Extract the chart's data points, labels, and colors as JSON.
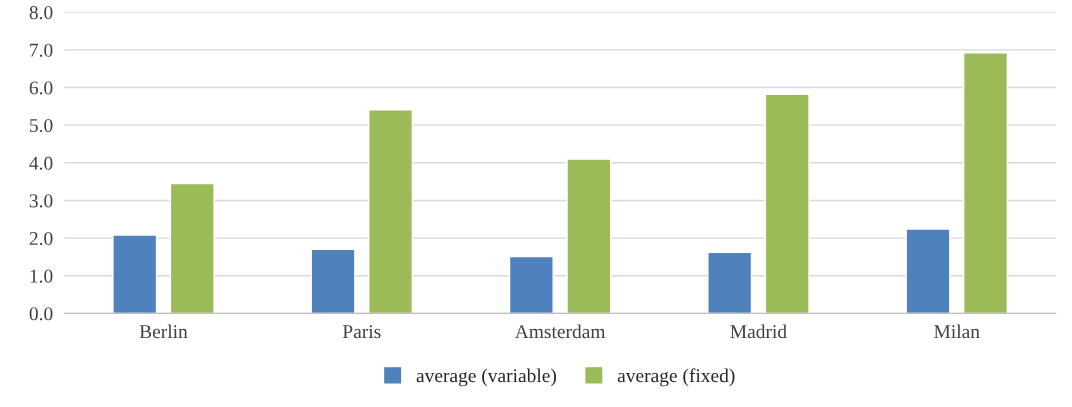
{
  "chart_data": {
    "type": "bar",
    "categories": [
      "Berlin",
      "Paris",
      "Amsterdam",
      "Madrid",
      "Milan"
    ],
    "series": [
      {
        "name": "average (variable)",
        "color": "#4f81bd",
        "values": [
          2.08,
          1.7,
          1.51,
          1.62,
          2.24
        ]
      },
      {
        "name": "average (fixed)",
        "color": "#9bbb59",
        "values": [
          3.45,
          5.41,
          4.1,
          5.82,
          6.92
        ]
      }
    ],
    "ylim": [
      0,
      8
    ],
    "yticks": [
      {
        "value": 0,
        "label": "0.0"
      },
      {
        "value": 1,
        "label": "1.0"
      },
      {
        "value": 2,
        "label": "2.0"
      },
      {
        "value": 3,
        "label": "3.0"
      },
      {
        "value": 4,
        "label": "4.0"
      },
      {
        "value": 5,
        "label": "5.0"
      },
      {
        "value": 6,
        "label": "6.0"
      },
      {
        "value": 7,
        "label": "7.0"
      },
      {
        "value": 8,
        "label": "8.0"
      }
    ],
    "grid": "y",
    "legend": "bottom"
  }
}
